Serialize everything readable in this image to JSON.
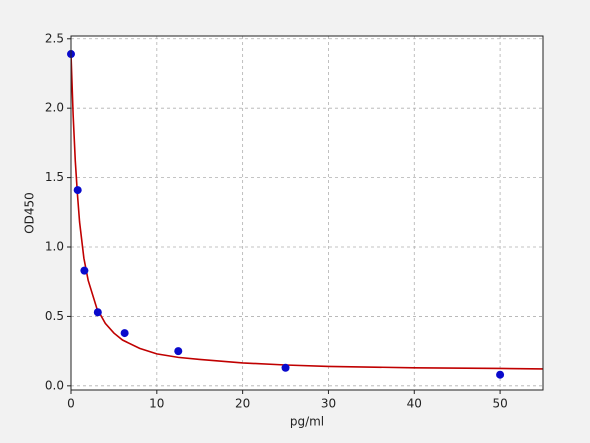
{
  "chart_data": {
    "type": "scatter",
    "x_label": "pg/ml",
    "y_label": "OD450",
    "xlim": [
      0,
      55
    ],
    "ylim": [
      -0.03,
      2.52
    ],
    "xticks": [
      0,
      10,
      20,
      30,
      40,
      50
    ],
    "yticks": [
      {
        "value": 0,
        "label": "0.0"
      },
      {
        "value": 0.5,
        "label": "0.5"
      },
      {
        "value": 1,
        "label": "1.0"
      },
      {
        "value": 1.5,
        "label": "1.5"
      },
      {
        "value": 2,
        "label": "2.0"
      },
      {
        "value": 2.5,
        "label": "2.5"
      }
    ],
    "grid": true,
    "series": [
      {
        "kind": "line",
        "color": "#c00000",
        "x": [
          0,
          0.25,
          0.5,
          0.75,
          1,
          1.5,
          2,
          3,
          4,
          5,
          6,
          8,
          10,
          12.5,
          15,
          20,
          25,
          30,
          40,
          50,
          55
        ],
        "values": [
          2.39,
          1.95,
          1.62,
          1.38,
          1.18,
          0.92,
          0.76,
          0.56,
          0.45,
          0.38,
          0.33,
          0.27,
          0.23,
          0.205,
          0.19,
          0.165,
          0.15,
          0.14,
          0.13,
          0.125,
          0.122
        ]
      },
      {
        "kind": "points",
        "color": "#0a0acc",
        "x": [
          0,
          0.78,
          1.56,
          3.125,
          6.25,
          12.5,
          25,
          50
        ],
        "values": [
          2.39,
          1.41,
          0.83,
          0.53,
          0.38,
          0.25,
          0.13,
          0.08
        ]
      }
    ]
  }
}
